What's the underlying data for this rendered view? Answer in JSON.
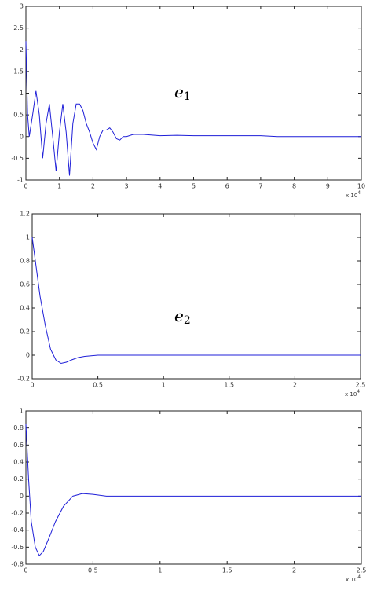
{
  "chart_data": [
    {
      "type": "line",
      "annotation": "e",
      "annotation_subscript": "1",
      "x_multiplier": "x 10",
      "x_multiplier_exponent": "4",
      "x": [
        0,
        0.05,
        0.1,
        0.2,
        0.3,
        0.4,
        0.5,
        0.6,
        0.7,
        0.8,
        0.9,
        1.0,
        1.1,
        1.2,
        1.3,
        1.4,
        1.5,
        1.6,
        1.7,
        1.8,
        1.9,
        2.0,
        2.1,
        2.2,
        2.3,
        2.4,
        2.5,
        2.6,
        2.7,
        2.8,
        2.9,
        3.0,
        3.2,
        3.5,
        4,
        4.5,
        5,
        5.5,
        6,
        6.5,
        7,
        7.5,
        8,
        9,
        10
      ],
      "series": [
        {
          "color": "#1f1fd8",
          "values": [
            2.2,
            0.5,
            0.0,
            0.5,
            1.05,
            0.5,
            -0.5,
            0.3,
            0.75,
            0.0,
            -0.8,
            0.1,
            0.75,
            0.1,
            -0.9,
            0.3,
            0.75,
            0.75,
            0.6,
            0.3,
            0.1,
            -0.15,
            -0.3,
            0.0,
            0.15,
            0.15,
            0.2,
            0.1,
            -0.05,
            -0.08,
            0.0,
            0.0,
            0.05,
            0.05,
            0.02,
            0.03,
            0.02,
            0.02,
            0.02,
            0.02,
            0.02,
            0.0,
            0.0,
            0.0,
            0.0
          ]
        }
      ],
      "xlim": [
        0,
        10
      ],
      "xticks": [
        0,
        1,
        2,
        3,
        4,
        5,
        6,
        7,
        8,
        9,
        10
      ],
      "ylim": [
        -1,
        3
      ],
      "yticks": [
        -1,
        -0.5,
        0,
        0.5,
        1,
        1.5,
        2,
        2.5,
        3
      ]
    },
    {
      "type": "line",
      "annotation": "e",
      "annotation_subscript": "2",
      "x_multiplier": "x 10",
      "x_multiplier_exponent": "4",
      "x": [
        0,
        0.03,
        0.06,
        0.1,
        0.14,
        0.18,
        0.22,
        0.26,
        0.3,
        0.35,
        0.4,
        0.5,
        1,
        1.5,
        2,
        2.5
      ],
      "series": [
        {
          "color": "#1f1fd8",
          "values": [
            1.0,
            0.75,
            0.5,
            0.25,
            0.05,
            -0.04,
            -0.07,
            -0.06,
            -0.04,
            -0.02,
            -0.01,
            0,
            0,
            0,
            0,
            0
          ]
        }
      ],
      "xlim": [
        0,
        2.5
      ],
      "xticks": [
        0,
        0.5,
        1,
        1.5,
        2,
        2.5
      ],
      "ylim": [
        -0.2,
        1.2
      ],
      "yticks": [
        -0.2,
        0,
        0.2,
        0.4,
        0.6,
        0.8,
        1,
        1.2
      ]
    },
    {
      "type": "line",
      "x_multiplier": "x 10",
      "x_multiplier_exponent": "4",
      "x": [
        0,
        0.02,
        0.04,
        0.07,
        0.1,
        0.13,
        0.17,
        0.22,
        0.28,
        0.35,
        0.42,
        0.5,
        0.6,
        0.75,
        1,
        1.5,
        2,
        2.5
      ],
      "series": [
        {
          "color": "#1f1fd8",
          "values": [
            0.85,
            0.2,
            -0.3,
            -0.6,
            -0.7,
            -0.65,
            -0.5,
            -0.3,
            -0.12,
            0.0,
            0.03,
            0.02,
            0.0,
            0.0,
            0,
            0,
            0,
            0
          ]
        }
      ],
      "xlim": [
        0,
        2.5
      ],
      "xticks": [
        0,
        0.5,
        1,
        1.5,
        2,
        2.5
      ],
      "ylim": [
        -0.8,
        1
      ],
      "yticks": [
        -0.8,
        -0.6,
        -0.4,
        -0.2,
        0,
        0.2,
        0.4,
        0.6,
        0.8,
        1
      ]
    }
  ]
}
